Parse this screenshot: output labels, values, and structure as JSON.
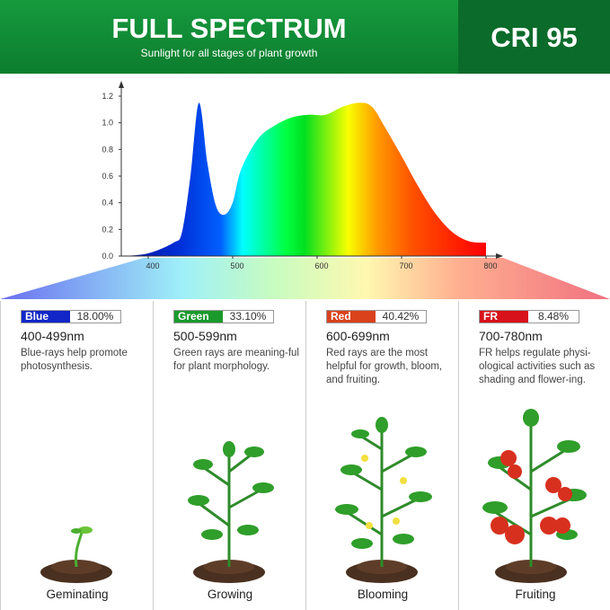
{
  "header": {
    "title": "FULL SPECTRUM",
    "subtitle": "Sunlight for all stages of plant growth",
    "cri": "CRI 95"
  },
  "chart_data": {
    "type": "area",
    "title": "",
    "xlabel": "",
    "ylabel": "",
    "xlim": [
      368,
      805
    ],
    "ylim": [
      0,
      1.25
    ],
    "x_ticks": [
      "400",
      "500",
      "600",
      "700",
      "800"
    ],
    "y_ticks": [
      "0.0",
      "0.2",
      "0.4",
      "0.6",
      "0.8",
      "1.0",
      "1.2"
    ],
    "grid": false,
    "x": [
      370,
      400,
      430,
      440,
      450,
      460,
      470,
      480,
      490,
      500,
      510,
      530,
      550,
      570,
      590,
      610,
      630,
      650,
      665,
      680,
      700,
      720,
      740,
      760,
      780,
      800
    ],
    "values": [
      0,
      0.02,
      0.1,
      0.18,
      0.6,
      1.15,
      0.7,
      0.38,
      0.31,
      0.4,
      0.65,
      0.88,
      0.98,
      1.04,
      1.06,
      1.06,
      1.12,
      1.15,
      1.12,
      0.97,
      0.75,
      0.52,
      0.32,
      0.18,
      0.11,
      0.1
    ]
  },
  "bands": [
    {
      "name": "Blue",
      "percent": "18.00%",
      "color": "#1226c8",
      "range": "400-499nm",
      "desc": "Blue-rays help promote photosynthesis.",
      "stage": "Geminating"
    },
    {
      "name": "Green",
      "percent": "33.10%",
      "color": "#1a9a2c",
      "range": "500-599nm",
      "desc": "Green rays are meaning-ful for plant morphology.",
      "stage": "Growing"
    },
    {
      "name": "Red",
      "percent": "40.42%",
      "color": "#d9421a",
      "range": "600-699nm",
      "desc": "Red rays are the most helpful for growth, bloom, and fruiting.",
      "stage": "Blooming"
    },
    {
      "name": "FR",
      "percent": "8.48%",
      "color": "#d8121a",
      "range": "700-780nm",
      "desc": "FR helps regulate physi-ological activities such as shading and flower-ing.",
      "stage": "Fruiting"
    }
  ]
}
